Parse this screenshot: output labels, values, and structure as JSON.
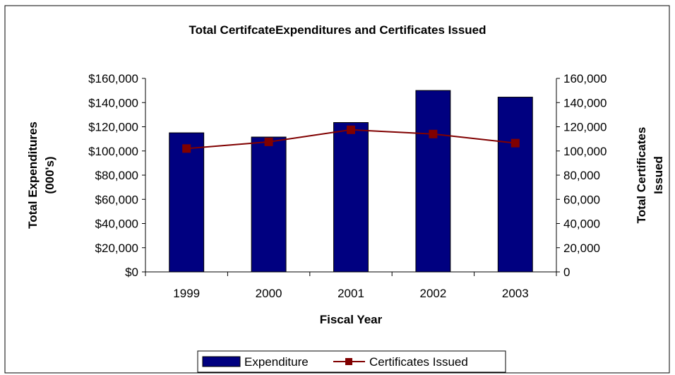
{
  "chart_data": {
    "type": "bar",
    "title": "Total CertifcateExpenditures and Certificates Issued",
    "xlabel": "Fiscal Year",
    "ylabel_lines": [
      "Total Expenditures",
      "(000's)"
    ],
    "y2label_lines": [
      "Total Certificates",
      "Issued"
    ],
    "categories": [
      "1999",
      "2000",
      "2001",
      "2002",
      "2003"
    ],
    "ylim": [
      0,
      160000
    ],
    "y2lim": [
      0,
      160000
    ],
    "y_ticks": [
      "$0",
      "$20,000",
      "$40,000",
      "$60,000",
      "$80,000",
      "$100,000",
      "$120,000",
      "$140,000",
      "$160,000"
    ],
    "y2_ticks": [
      "0",
      "20,000",
      "40,000",
      "60,000",
      "80,000",
      "100,000",
      "120,000",
      "140,000",
      "160,000"
    ],
    "grid": false,
    "legend_position": "bottom",
    "series": [
      {
        "name": "Expenditure",
        "type": "bar",
        "axis": "left",
        "color": "#000080",
        "values": [
          115000,
          111500,
          123500,
          150000,
          144500
        ]
      },
      {
        "name": "Certificates Issued",
        "type": "line",
        "axis": "right",
        "color": "#800000",
        "marker": "square",
        "values": [
          102000,
          107500,
          117500,
          114000,
          106500
        ]
      }
    ]
  }
}
